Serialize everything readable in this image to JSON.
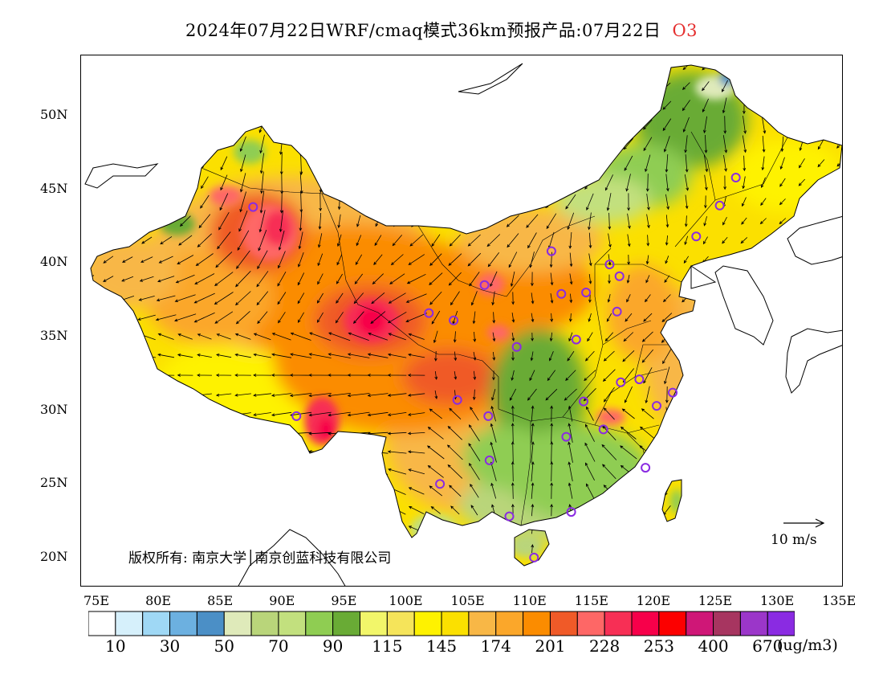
{
  "title": {
    "text": "2024年07月22日WRF/cmaq模式36km预报产品:07月22日",
    "species": "O3"
  },
  "axes": {
    "lat_labels": [
      {
        "text": "50N",
        "lat": 50
      },
      {
        "text": "45N",
        "lat": 45
      },
      {
        "text": "40N",
        "lat": 40
      },
      {
        "text": "35N",
        "lat": 35
      },
      {
        "text": "30N",
        "lat": 30
      },
      {
        "text": "25N",
        "lat": 25
      },
      {
        "text": "20N",
        "lat": 20
      }
    ],
    "lon_labels": [
      {
        "text": "75E",
        "lon": 75
      },
      {
        "text": "80E",
        "lon": 80
      },
      {
        "text": "85E",
        "lon": 85
      },
      {
        "text": "90E",
        "lon": 90
      },
      {
        "text": "95E",
        "lon": 95
      },
      {
        "text": "100E",
        "lon": 100
      },
      {
        "text": "105E",
        "lon": 105
      },
      {
        "text": "110E",
        "lon": 110
      },
      {
        "text": "115E",
        "lon": 115
      },
      {
        "text": "120E",
        "lon": 120
      },
      {
        "text": "125E",
        "lon": 125
      },
      {
        "text": "130E",
        "lon": 130
      },
      {
        "text": "135E",
        "lon": 135
      }
    ]
  },
  "copyright": "版权所有: 南京大学│南京创蓝科技有限公司",
  "wind_reference": "10 m/s",
  "legend": {
    "unit": "(ug/m3)",
    "colors": [
      "#ffffff",
      "#d6f0fb",
      "#9fd8f5",
      "#6cb0e0",
      "#4b8fc6",
      "#dfeaba",
      "#b9d57a",
      "#c2e07e",
      "#8fcd52",
      "#69ab35",
      "#f2f66a",
      "#f5e45a",
      "#fef200",
      "#fbe000",
      "#f8b746",
      "#fba72a",
      "#fb8c00",
      "#f05a28",
      "#fe6766",
      "#f72f55",
      "#f7004a",
      "#fc0000",
      "#cf1777",
      "#a73560",
      "#9b36c9",
      "#8a2be2"
    ],
    "labels": [
      {
        "text": "10",
        "index": 1
      },
      {
        "text": "30",
        "index": 3
      },
      {
        "text": "50",
        "index": 5
      },
      {
        "text": "70",
        "index": 7
      },
      {
        "text": "90",
        "index": 9
      },
      {
        "text": "115",
        "index": 11
      },
      {
        "text": "145",
        "index": 13
      },
      {
        "text": "174",
        "index": 15
      },
      {
        "text": "201",
        "index": 17
      },
      {
        "text": "228",
        "index": 19
      },
      {
        "text": "253",
        "index": 21
      },
      {
        "text": "400",
        "index": 23
      },
      {
        "text": "670",
        "index": 25
      }
    ]
  },
  "stations": [
    [
      87.6,
      43.8
    ],
    [
      91.1,
      29.6
    ],
    [
      101.8,
      36.6
    ],
    [
      103.8,
      36.1
    ],
    [
      106.3,
      38.5
    ],
    [
      104.1,
      30.7
    ],
    [
      106.6,
      29.6
    ],
    [
      106.7,
      26.6
    ],
    [
      102.7,
      25.0
    ],
    [
      108.3,
      22.8
    ],
    [
      110.3,
      20.0
    ],
    [
      113.3,
      23.1
    ],
    [
      112.9,
      28.2
    ],
    [
      114.3,
      30.6
    ],
    [
      115.9,
      28.7
    ],
    [
      117.3,
      31.9
    ],
    [
      118.8,
      32.1
    ],
    [
      120.2,
      30.3
    ],
    [
      121.5,
      31.2
    ],
    [
      119.3,
      26.1
    ],
    [
      113.7,
      34.8
    ],
    [
      108.9,
      34.3
    ],
    [
      112.5,
      37.9
    ],
    [
      114.5,
      38.0
    ],
    [
      116.4,
      39.9
    ],
    [
      117.2,
      39.1
    ],
    [
      117.0,
      36.7
    ],
    [
      111.7,
      40.8
    ],
    [
      123.4,
      41.8
    ],
    [
      125.3,
      43.9
    ],
    [
      126.6,
      45.8
    ]
  ]
}
